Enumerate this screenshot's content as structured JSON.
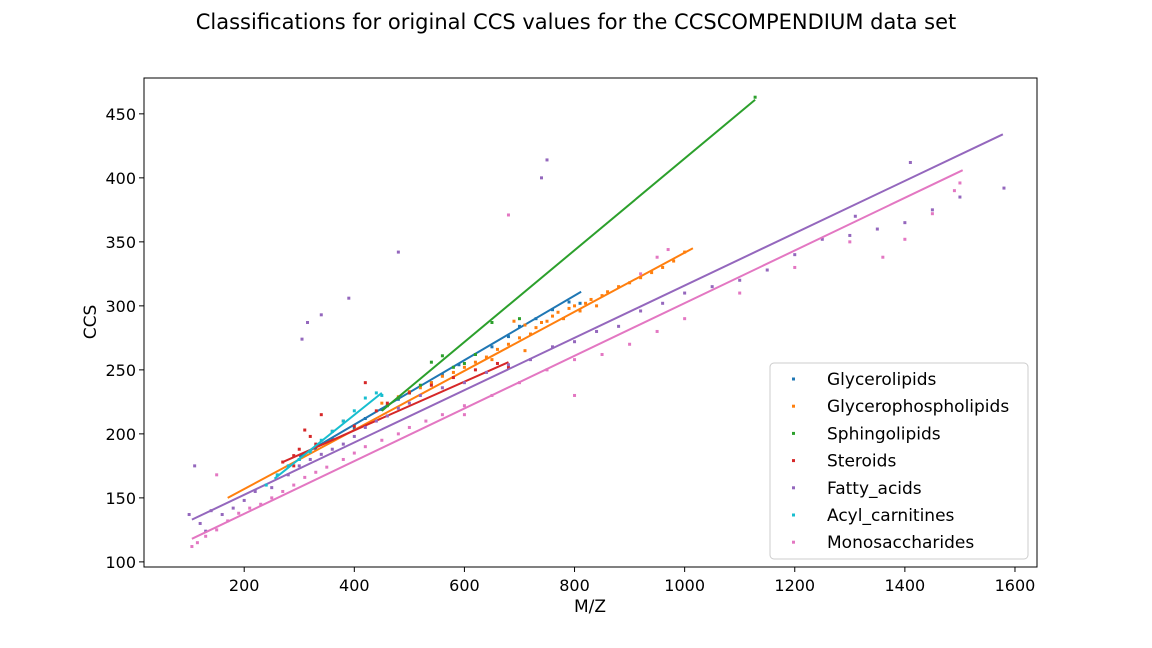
{
  "chart_data": {
    "type": "scatter",
    "title": "Classifications for original CCS values for the CCSCOMPENDIUM data set",
    "xlabel": "M/Z",
    "ylabel": "CCS",
    "xlim": [
      18,
      1640
    ],
    "ylim": [
      96,
      478
    ],
    "xticks": [
      200,
      400,
      600,
      800,
      1000,
      1200,
      1400,
      1600
    ],
    "yticks": [
      100,
      150,
      200,
      250,
      300,
      350,
      400,
      450
    ],
    "grid": false,
    "legend_position": "lower-right",
    "series": [
      {
        "name": "Glycerolipids",
        "color": "#1f77b4",
        "trend": [
          [
            300,
            182
          ],
          [
            812,
            311
          ]
        ],
        "points": [
          [
            300,
            180
          ],
          [
            330,
            188
          ],
          [
            360,
            196
          ],
          [
            400,
            204
          ],
          [
            420,
            212
          ],
          [
            450,
            219
          ],
          [
            480,
            227
          ],
          [
            500,
            232
          ],
          [
            540,
            240
          ],
          [
            560,
            246
          ],
          [
            590,
            254
          ],
          [
            620,
            262
          ],
          [
            650,
            268
          ],
          [
            680,
            276
          ],
          [
            700,
            284
          ],
          [
            730,
            290
          ],
          [
            760,
            297
          ],
          [
            790,
            303
          ],
          [
            810,
            302
          ]
        ]
      },
      {
        "name": "Glycerophospholipids",
        "color": "#ff7f0e",
        "trend": [
          [
            170,
            150
          ],
          [
            1015,
            345
          ]
        ],
        "points": [
          [
            450,
            224
          ],
          [
            480,
            229
          ],
          [
            500,
            233
          ],
          [
            520,
            236
          ],
          [
            540,
            240
          ],
          [
            560,
            245
          ],
          [
            580,
            248
          ],
          [
            600,
            252
          ],
          [
            620,
            256
          ],
          [
            640,
            260
          ],
          [
            660,
            266
          ],
          [
            680,
            270
          ],
          [
            700,
            275
          ],
          [
            710,
            285
          ],
          [
            720,
            278
          ],
          [
            730,
            283
          ],
          [
            740,
            287
          ],
          [
            750,
            288
          ],
          [
            760,
            292
          ],
          [
            770,
            295
          ],
          [
            780,
            290
          ],
          [
            790,
            298
          ],
          [
            800,
            300
          ],
          [
            810,
            296
          ],
          [
            820,
            302
          ],
          [
            830,
            305
          ],
          [
            840,
            300
          ],
          [
            850,
            308
          ],
          [
            860,
            311
          ],
          [
            880,
            315
          ],
          [
            900,
            318
          ],
          [
            920,
            322
          ],
          [
            940,
            326
          ],
          [
            960,
            330
          ],
          [
            980,
            335
          ],
          [
            1000,
            342
          ],
          [
            690,
            288
          ],
          [
            710,
            265
          ],
          [
            650,
            258
          ]
        ]
      },
      {
        "name": "Sphingolipids",
        "color": "#2ca02c",
        "trend": [
          [
            450,
            218
          ],
          [
            1128,
            461
          ]
        ],
        "points": [
          [
            460,
            222
          ],
          [
            480,
            228
          ],
          [
            500,
            232
          ],
          [
            520,
            238
          ],
          [
            540,
            256
          ],
          [
            560,
            261
          ],
          [
            580,
            252
          ],
          [
            600,
            255
          ],
          [
            620,
            262
          ],
          [
            650,
            287
          ],
          [
            700,
            290
          ],
          [
            1128,
            463
          ]
        ]
      },
      {
        "name": "Steroids",
        "color": "#d62728",
        "trend": [
          [
            270,
            178
          ],
          [
            680,
            256
          ]
        ],
        "points": [
          [
            270,
            178
          ],
          [
            290,
            183
          ],
          [
            300,
            188
          ],
          [
            310,
            203
          ],
          [
            320,
            198
          ],
          [
            340,
            215
          ],
          [
            360,
            202
          ],
          [
            380,
            210
          ],
          [
            400,
            206
          ],
          [
            420,
            240
          ],
          [
            440,
            218
          ],
          [
            460,
            224
          ],
          [
            500,
            232
          ],
          [
            540,
            238
          ],
          [
            580,
            244
          ],
          [
            620,
            250
          ],
          [
            660,
            255
          ],
          [
            680,
            252
          ],
          [
            290,
            175
          ],
          [
            330,
            192
          ]
        ]
      },
      {
        "name": "Fatty_acids",
        "color": "#9467bd",
        "trend": [
          [
            105,
            133
          ],
          [
            1578,
            434
          ]
        ],
        "points": [
          [
            100,
            137
          ],
          [
            110,
            175
          ],
          [
            120,
            130
          ],
          [
            130,
            124
          ],
          [
            140,
            140
          ],
          [
            160,
            137
          ],
          [
            180,
            142
          ],
          [
            200,
            148
          ],
          [
            220,
            155
          ],
          [
            250,
            158
          ],
          [
            280,
            168
          ],
          [
            300,
            175
          ],
          [
            320,
            180
          ],
          [
            340,
            184
          ],
          [
            360,
            188
          ],
          [
            380,
            192
          ],
          [
            400,
            198
          ],
          [
            420,
            205
          ],
          [
            440,
            210
          ],
          [
            460,
            214
          ],
          [
            480,
            220
          ],
          [
            500,
            224
          ],
          [
            520,
            230
          ],
          [
            560,
            236
          ],
          [
            600,
            240
          ],
          [
            640,
            248
          ],
          [
            680,
            254
          ],
          [
            720,
            258
          ],
          [
            760,
            268
          ],
          [
            800,
            272
          ],
          [
            840,
            280
          ],
          [
            880,
            284
          ],
          [
            920,
            296
          ],
          [
            960,
            302
          ],
          [
            1000,
            310
          ],
          [
            1050,
            315
          ],
          [
            1100,
            320
          ],
          [
            1150,
            328
          ],
          [
            1200,
            340
          ],
          [
            1250,
            352
          ],
          [
            1300,
            355
          ],
          [
            1350,
            360
          ],
          [
            1400,
            365
          ],
          [
            1450,
            375
          ],
          [
            1500,
            385
          ],
          [
            1580,
            392
          ],
          [
            1410,
            412
          ],
          [
            1310,
            370
          ],
          [
            305,
            274
          ],
          [
            315,
            287
          ],
          [
            340,
            293
          ],
          [
            390,
            306
          ],
          [
            480,
            342
          ],
          [
            740,
            400
          ],
          [
            750,
            414
          ]
        ]
      },
      {
        "name": "Acyl_carnitines",
        "color": "#17becf",
        "trend": [
          [
            255,
            165
          ],
          [
            450,
            232
          ]
        ],
        "points": [
          [
            240,
            160
          ],
          [
            260,
            168
          ],
          [
            280,
            175
          ],
          [
            300,
            180
          ],
          [
            320,
            186
          ],
          [
            340,
            195
          ],
          [
            360,
            202
          ],
          [
            380,
            210
          ],
          [
            400,
            218
          ],
          [
            420,
            228
          ],
          [
            440,
            232
          ],
          [
            450,
            230
          ]
        ]
      },
      {
        "name": "Monosaccharides",
        "color": "#e377c2",
        "trend": [
          [
            105,
            118
          ],
          [
            1505,
            406
          ]
        ],
        "points": [
          [
            105,
            112
          ],
          [
            115,
            115
          ],
          [
            130,
            120
          ],
          [
            150,
            125
          ],
          [
            170,
            132
          ],
          [
            190,
            138
          ],
          [
            210,
            142
          ],
          [
            230,
            145
          ],
          [
            250,
            150
          ],
          [
            270,
            155
          ],
          [
            290,
            160
          ],
          [
            310,
            166
          ],
          [
            330,
            170
          ],
          [
            350,
            174
          ],
          [
            380,
            180
          ],
          [
            400,
            185
          ],
          [
            420,
            190
          ],
          [
            450,
            195
          ],
          [
            480,
            200
          ],
          [
            500,
            205
          ],
          [
            530,
            210
          ],
          [
            560,
            215
          ],
          [
            600,
            222
          ],
          [
            650,
            230
          ],
          [
            700,
            240
          ],
          [
            750,
            250
          ],
          [
            800,
            258
          ],
          [
            850,
            262
          ],
          [
            900,
            270
          ],
          [
            950,
            280
          ],
          [
            1000,
            290
          ],
          [
            1100,
            310
          ],
          [
            1200,
            330
          ],
          [
            1300,
            350
          ],
          [
            1360,
            338
          ],
          [
            1400,
            352
          ],
          [
            1450,
            372
          ],
          [
            1490,
            390
          ],
          [
            1500,
            396
          ],
          [
            680,
            371
          ],
          [
            800,
            230
          ],
          [
            600,
            215
          ],
          [
            920,
            325
          ],
          [
            950,
            338
          ],
          [
            970,
            344
          ],
          [
            150,
            168
          ]
        ]
      }
    ]
  }
}
